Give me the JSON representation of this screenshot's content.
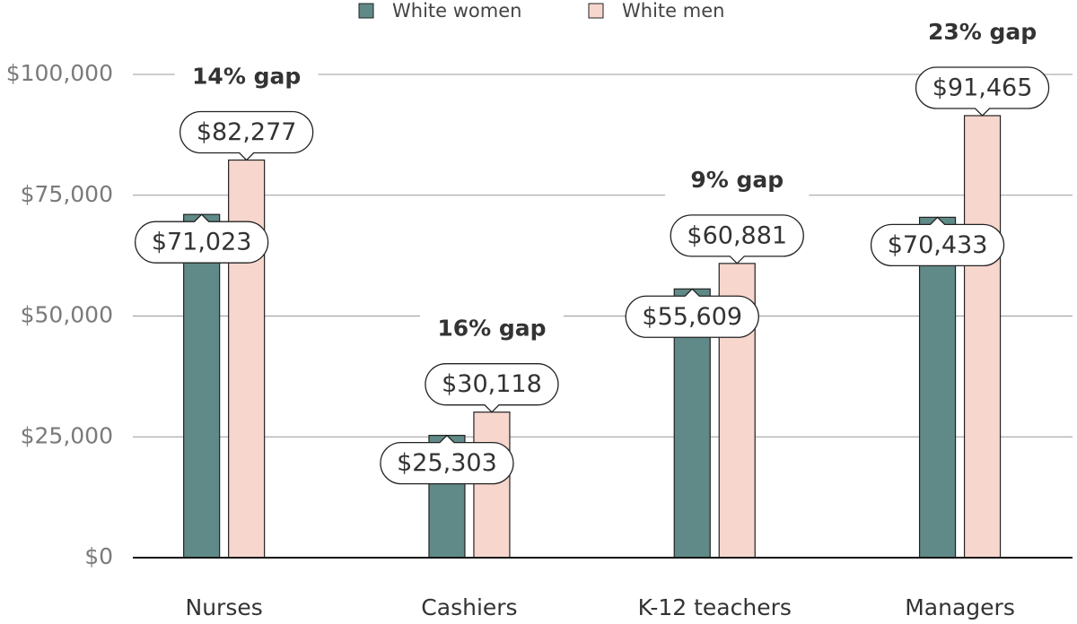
{
  "chart_data": {
    "type": "bar",
    "categories": [
      "Nurses",
      "Cashiers",
      "K-12 teachers",
      "Managers"
    ],
    "series": [
      {
        "name": "White women",
        "color": "#5f8a87",
        "values": [
          71023,
          25303,
          55609,
          70433
        ],
        "value_labels": [
          "$71,023",
          "$25,303",
          "$55,609",
          "$70,433"
        ]
      },
      {
        "name": "White men",
        "color": "#f6d6cd",
        "values": [
          82277,
          30118,
          60881,
          91465
        ],
        "value_labels": [
          "$82,277",
          "$30,118",
          "$60,881",
          "$91,465"
        ]
      }
    ],
    "annotations": [
      "14% gap",
      "16% gap",
      "9% gap",
      "23% gap"
    ],
    "ylim": [
      0,
      100000
    ],
    "yticks": [
      {
        "value": 0,
        "label": "$0"
      },
      {
        "value": 25000,
        "label": "$25,000"
      },
      {
        "value": 50000,
        "label": "$50,000"
      },
      {
        "value": 75000,
        "label": "$75,000"
      },
      {
        "value": 100000,
        "label": "$100,000"
      }
    ],
    "grid": true,
    "legend": "top"
  }
}
